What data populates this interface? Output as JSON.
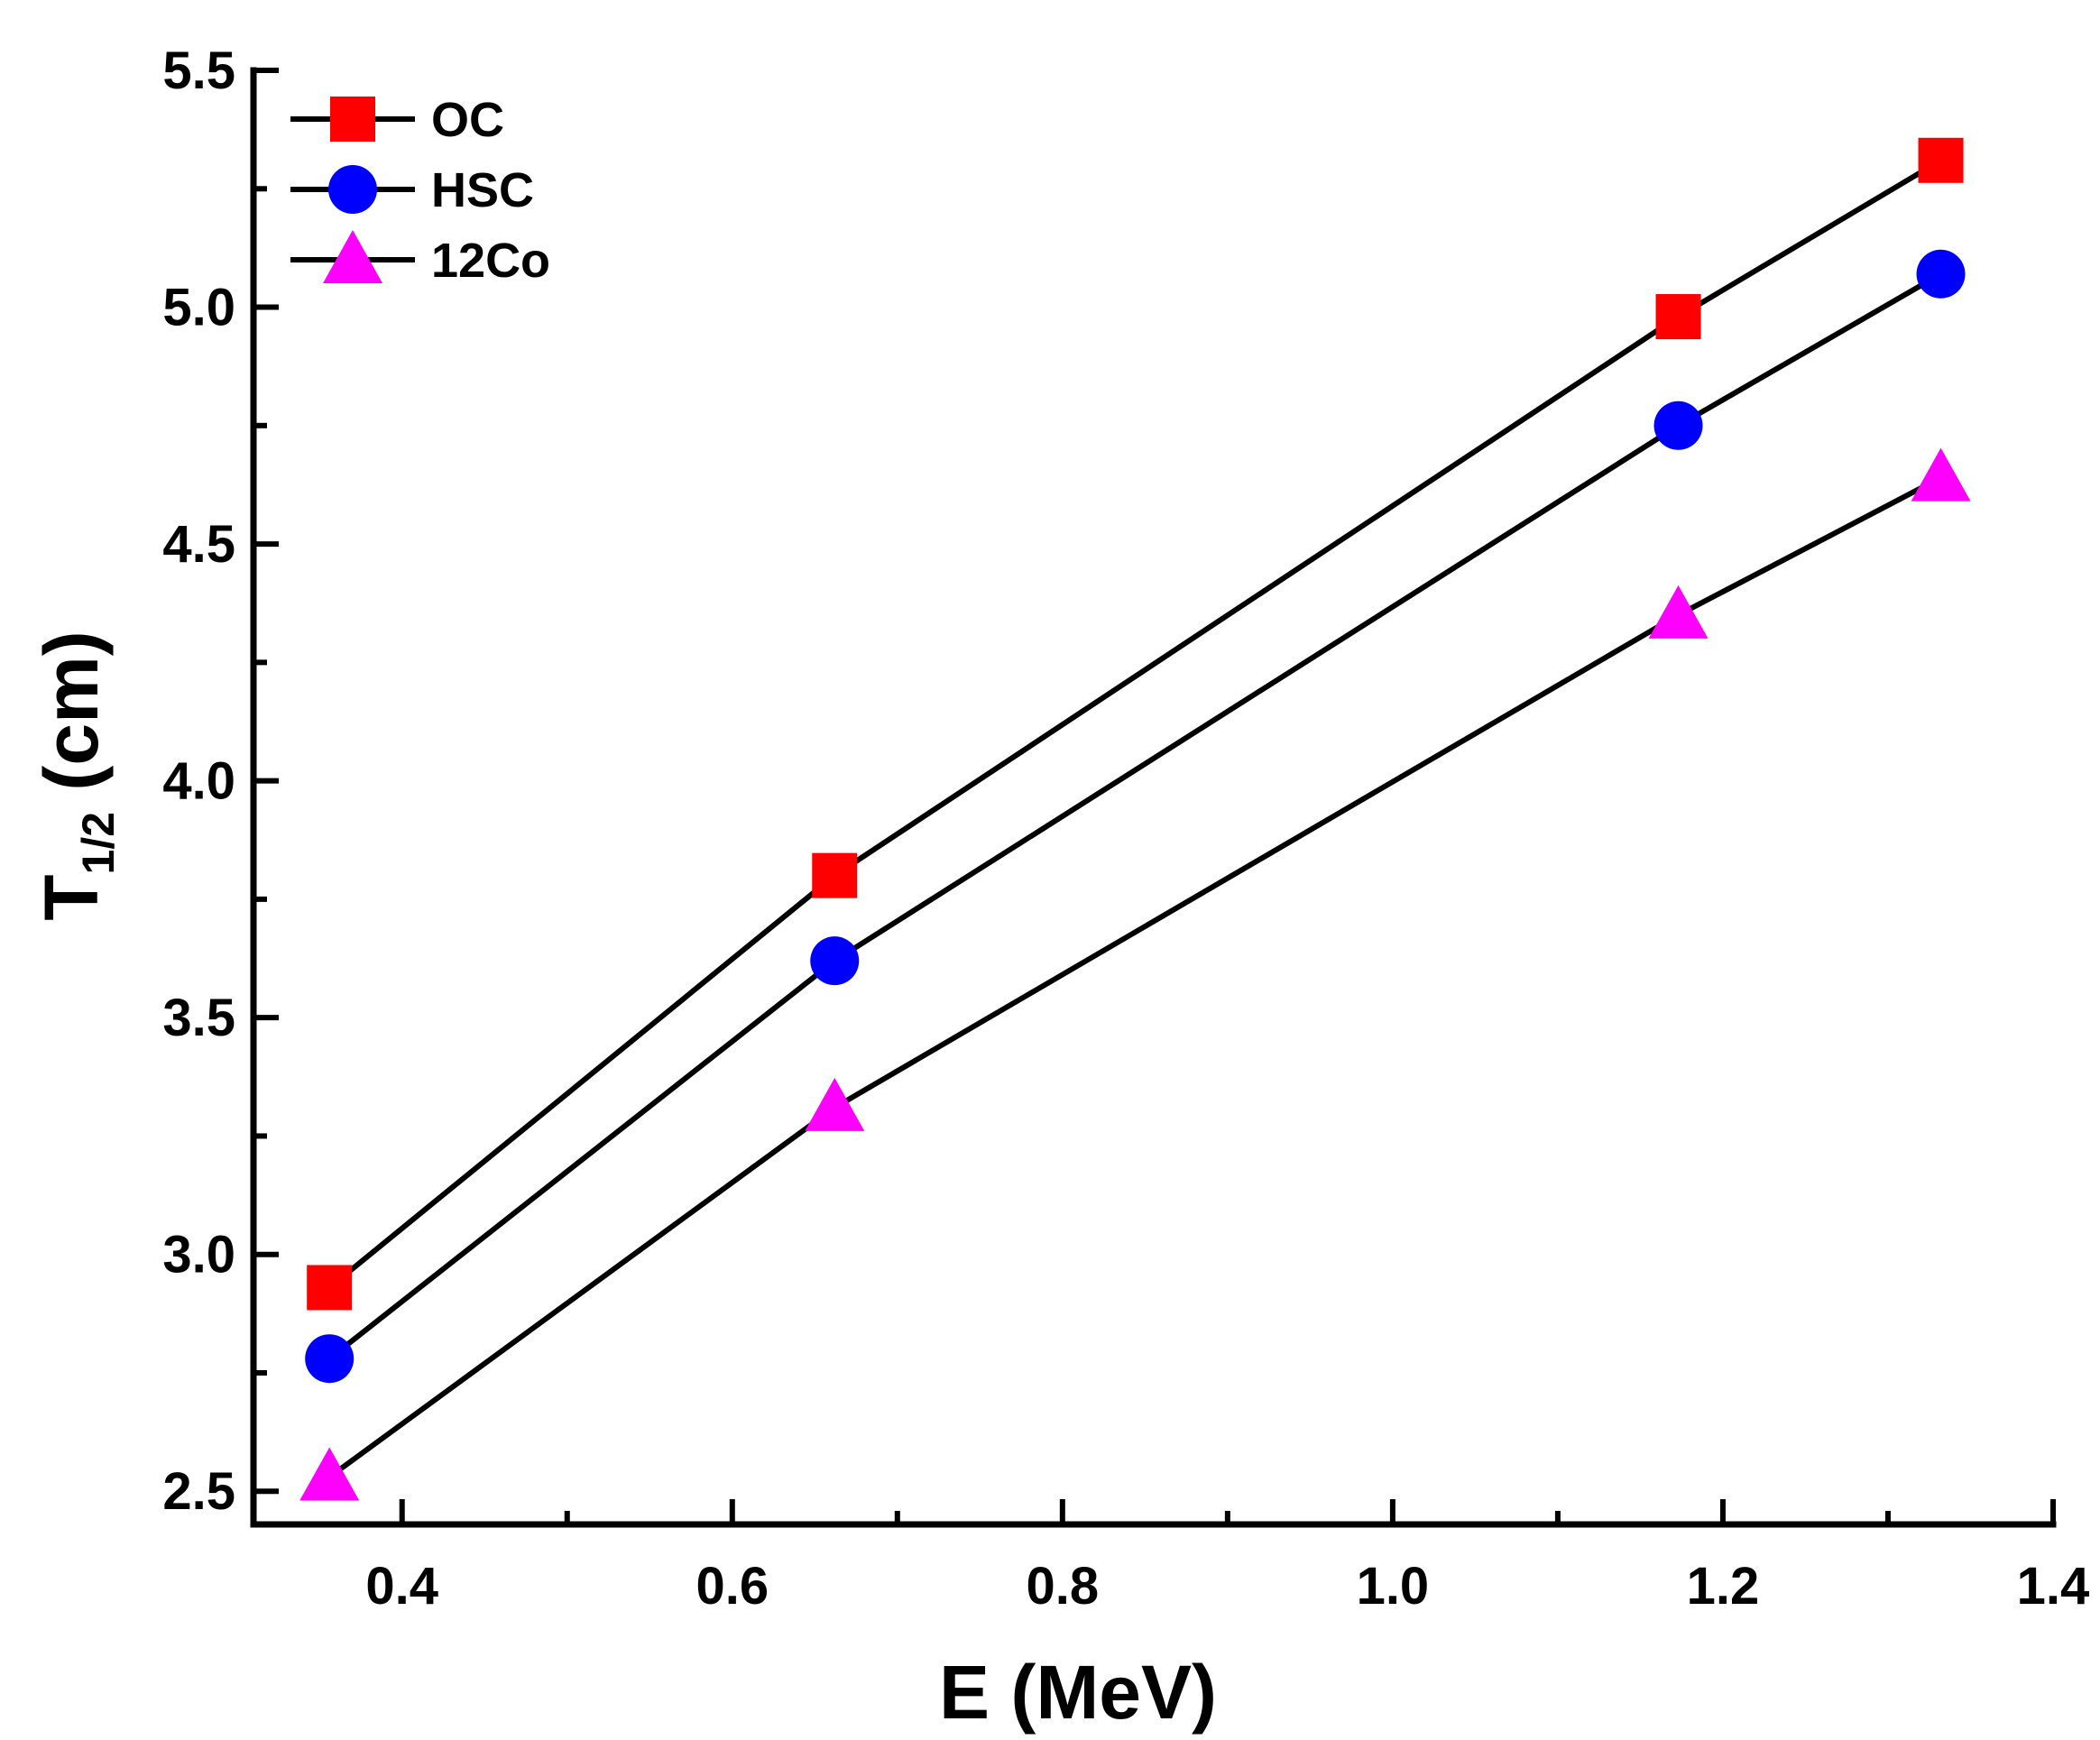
{
  "chart_data": {
    "type": "line",
    "title": "",
    "xlabel": "E (MeV)",
    "ylabel": {
      "main": "T",
      "sub": "1/2",
      "rest": " (cm)"
    },
    "xlim": [
      0.31,
      1.4
    ],
    "ylim": [
      2.43,
      5.5
    ],
    "xticks": [
      0.4,
      0.6,
      0.8,
      1.0,
      1.2,
      1.4
    ],
    "xtick_labels": [
      "0.4",
      "0.6",
      "0.8",
      "1.0",
      "1.2",
      "1.4"
    ],
    "yticks": [
      2.5,
      3.0,
      3.5,
      4.0,
      4.5,
      5.0,
      5.5
    ],
    "ytick_labels": [
      "2.5",
      "3.0",
      "3.5",
      "4.0",
      "4.5",
      "5.0",
      "5.5"
    ],
    "grid": false,
    "legend_position": "top-left",
    "x": [
      0.356,
      0.662,
      1.173,
      1.332
    ],
    "series": [
      {
        "name": "OC",
        "marker": "square",
        "color": "#ff0000",
        "values": [
          2.93,
          3.8,
          4.98,
          5.31
        ]
      },
      {
        "name": "HSC",
        "marker": "circle",
        "color": "#0000ff",
        "values": [
          2.78,
          3.62,
          4.75,
          5.07
        ]
      },
      {
        "name": "12Co",
        "marker": "triangle",
        "color": "#ff00ff",
        "values": [
          2.53,
          3.31,
          4.35,
          4.64
        ]
      }
    ],
    "line_color": "#000000"
  }
}
